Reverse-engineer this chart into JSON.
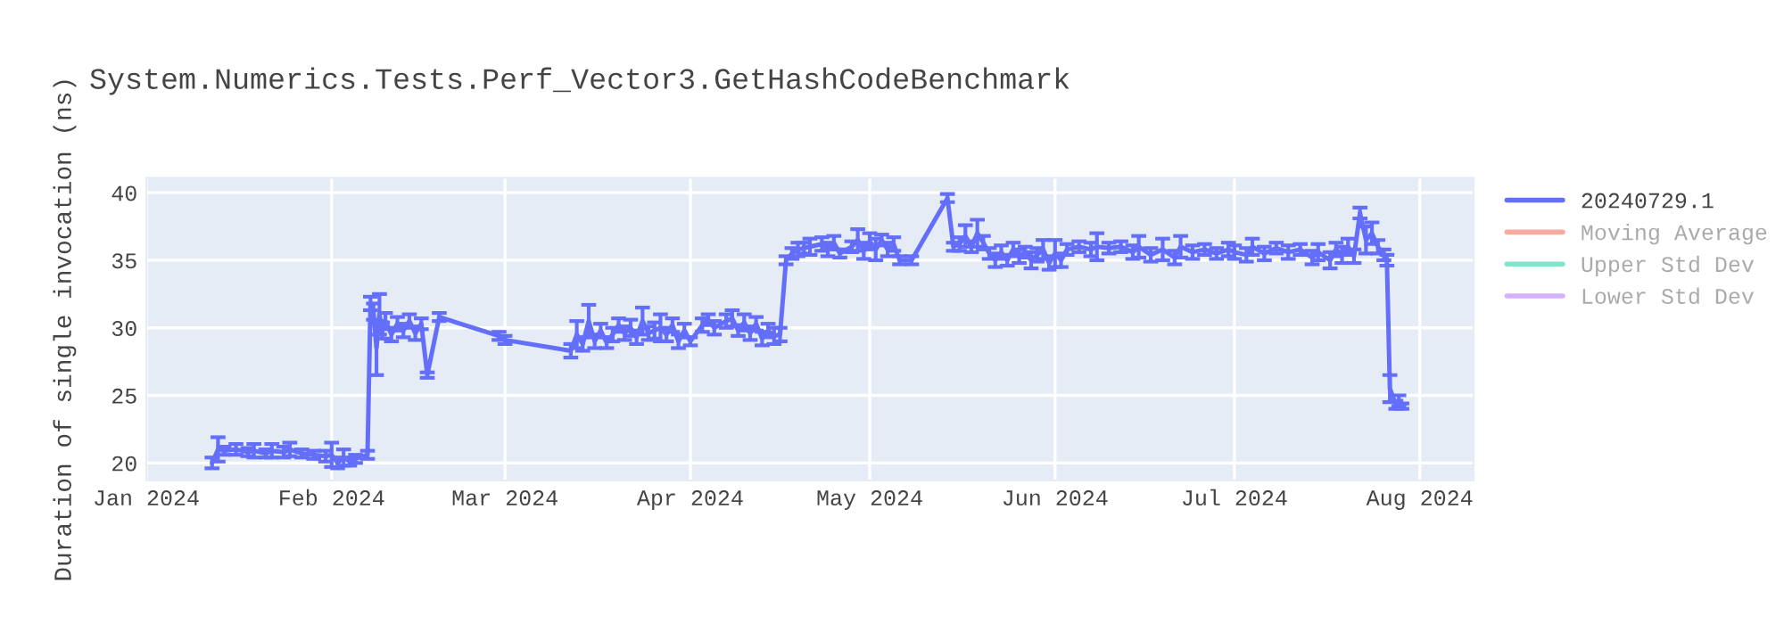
{
  "chart_data": {
    "type": "line",
    "title": "System.Numerics.Tests.Perf_Vector3.GetHashCodeBenchmark",
    "ylabel": "Duration of single invocation (ns)",
    "xlim": [
      "2024-01-01",
      "2024-08-10"
    ],
    "xticks": [
      {
        "value": "2024-01-01",
        "label": "Jan 2024"
      },
      {
        "value": "2024-02-01",
        "label": "Feb 2024"
      },
      {
        "value": "2024-03-01",
        "label": "Mar 2024"
      },
      {
        "value": "2024-04-01",
        "label": "Apr 2024"
      },
      {
        "value": "2024-05-01",
        "label": "May 2024"
      },
      {
        "value": "2024-06-01",
        "label": "Jun 2024"
      },
      {
        "value": "2024-07-01",
        "label": "Jul 2024"
      },
      {
        "value": "2024-08-01",
        "label": "Aug 2024"
      }
    ],
    "ylim": [
      18.7,
      41.1
    ],
    "yticks": [
      20,
      25,
      30,
      35,
      40
    ],
    "grid": true,
    "legend": "top right",
    "marker": "none",
    "line_style": "solid",
    "series": [
      {
        "name": "20240729.1",
        "color": "#636efa",
        "x": [
          "2024-01-12",
          "2024-01-13",
          "2024-01-14",
          "2024-01-16",
          "2024-01-18",
          "2024-01-19",
          "2024-01-21",
          "2024-01-22",
          "2024-01-24",
          "2024-01-25",
          "2024-01-27",
          "2024-01-29",
          "2024-01-31",
          "2024-02-01",
          "2024-02-02",
          "2024-02-03",
          "2024-02-04",
          "2024-02-05",
          "2024-02-07",
          "2024-02-07T12:00",
          "2024-02-08",
          "2024-02-08T12:00",
          "2024-02-09",
          "2024-02-09T12:00",
          "2024-02-10",
          "2024-02-11",
          "2024-02-12",
          "2024-02-13",
          "2024-02-14",
          "2024-02-15",
          "2024-02-16",
          "2024-02-17",
          "2024-02-19",
          "2024-02-29",
          "2024-03-01",
          "2024-03-12",
          "2024-03-13",
          "2024-03-14",
          "2024-03-15",
          "2024-03-16",
          "2024-03-17",
          "2024-03-18",
          "2024-03-19",
          "2024-03-20",
          "2024-03-21",
          "2024-03-22",
          "2024-03-23",
          "2024-03-24",
          "2024-03-25",
          "2024-03-26",
          "2024-03-27",
          "2024-03-28",
          "2024-03-29",
          "2024-03-30",
          "2024-03-31",
          "2024-04-01",
          "2024-04-03",
          "2024-04-04",
          "2024-04-05",
          "2024-04-07",
          "2024-04-08",
          "2024-04-09",
          "2024-04-10",
          "2024-04-11",
          "2024-04-12",
          "2024-04-13",
          "2024-04-14",
          "2024-04-15",
          "2024-04-16",
          "2024-04-17",
          "2024-04-18",
          "2024-04-19",
          "2024-04-20",
          "2024-04-21",
          "2024-04-23",
          "2024-04-24",
          "2024-04-25",
          "2024-04-26",
          "2024-04-28",
          "2024-04-29",
          "2024-04-30",
          "2024-05-01",
          "2024-05-02",
          "2024-05-03",
          "2024-05-04",
          "2024-05-05",
          "2024-05-06",
          "2024-05-08",
          "2024-05-14",
          "2024-05-15",
          "2024-05-16",
          "2024-05-17",
          "2024-05-18",
          "2024-05-19",
          "2024-05-20",
          "2024-05-21",
          "2024-05-22",
          "2024-05-23",
          "2024-05-24",
          "2024-05-25",
          "2024-05-26",
          "2024-05-27",
          "2024-05-28",
          "2024-05-29",
          "2024-05-30",
          "2024-05-31",
          "2024-06-01",
          "2024-06-02",
          "2024-06-03",
          "2024-06-05",
          "2024-06-07",
          "2024-06-08",
          "2024-06-10",
          "2024-06-12",
          "2024-06-14",
          "2024-06-15",
          "2024-06-17",
          "2024-06-19",
          "2024-06-21",
          "2024-06-22",
          "2024-06-24",
          "2024-06-26",
          "2024-06-28",
          "2024-06-30",
          "2024-07-01",
          "2024-07-03",
          "2024-07-04",
          "2024-07-06",
          "2024-07-08",
          "2024-07-10",
          "2024-07-12",
          "2024-07-14",
          "2024-07-15",
          "2024-07-17",
          "2024-07-18",
          "2024-07-19",
          "2024-07-20",
          "2024-07-21",
          "2024-07-22",
          "2024-07-23",
          "2024-07-24",
          "2024-07-25",
          "2024-07-26",
          "2024-07-26T12:00",
          "2024-07-27",
          "2024-07-28",
          "2024-07-28T12:00",
          "2024-07-29"
        ],
        "values": [
          20.0,
          21.0,
          20.9,
          21.0,
          20.8,
          20.9,
          20.7,
          20.9,
          20.8,
          21.0,
          20.7,
          20.6,
          20.5,
          20.6,
          20.0,
          20.4,
          20.1,
          20.3,
          20.6,
          31.8,
          31.2,
          28.5,
          31.0,
          29.8,
          30.5,
          29.5,
          30.3,
          29.8,
          30.5,
          29.6,
          30.3,
          26.5,
          30.8,
          29.4,
          29.1,
          28.3,
          29.5,
          28.8,
          30.5,
          29.0,
          29.8,
          28.9,
          29.5,
          30.2,
          29.6,
          30.0,
          29.3,
          30.5,
          29.6,
          29.8,
          30.0,
          29.5,
          30.2,
          29.0,
          29.8,
          29.0,
          30.2,
          30.6,
          30.0,
          30.5,
          30.7,
          29.8,
          30.4,
          29.6,
          30.3,
          29.2,
          29.8,
          29.4,
          29.5,
          35.0,
          35.5,
          35.8,
          35.9,
          36.0,
          36.2,
          35.8,
          36.3,
          35.5,
          36.0,
          36.5,
          35.7,
          36.4,
          35.8,
          36.5,
          35.8,
          36.2,
          35.0,
          35.0,
          39.6,
          36.0,
          36.2,
          36.8,
          36.0,
          37.0,
          36.3,
          35.5,
          35.0,
          35.6,
          35.0,
          35.8,
          35.3,
          35.6,
          35.0,
          35.4,
          35.8,
          34.8,
          35.5,
          35.0,
          35.8,
          36.0,
          35.8,
          36.0,
          35.9,
          36.0,
          35.6,
          36.0,
          35.4,
          35.8,
          35.2,
          36.0,
          35.6,
          35.8,
          35.5,
          35.8,
          35.6,
          35.4,
          36.0,
          35.5,
          35.9,
          35.6,
          35.8,
          35.2,
          35.6,
          35.0,
          35.8,
          35.4,
          36.0,
          35.3,
          38.5,
          36.5,
          37.0,
          36.0,
          35.4,
          35.0,
          25.5,
          24.3,
          24.6,
          24.2
        ],
        "errors": [
          0.4,
          0.9,
          0.3,
          0.4,
          0.3,
          0.5,
          0.3,
          0.5,
          0.4,
          0.5,
          0.3,
          0.3,
          0.4,
          0.9,
          0.4,
          0.6,
          0.3,
          0.3,
          0.3,
          0.5,
          0.6,
          2.0,
          1.5,
          0.6,
          0.6,
          0.5,
          0.5,
          0.5,
          0.5,
          0.5,
          0.4,
          0.2,
          0.3,
          0.3,
          0.3,
          0.5,
          1.0,
          0.5,
          1.2,
          0.5,
          0.5,
          0.4,
          0.5,
          0.5,
          0.5,
          0.6,
          0.5,
          1.0,
          0.5,
          0.6,
          1.0,
          0.5,
          0.5,
          0.5,
          0.5,
          0.3,
          0.5,
          0.4,
          0.5,
          0.5,
          0.6,
          0.4,
          0.6,
          0.5,
          0.5,
          0.5,
          0.5,
          0.6,
          0.5,
          0.3,
          0.4,
          0.5,
          0.4,
          0.6,
          0.5,
          0.5,
          0.5,
          0.3,
          0.4,
          0.8,
          0.6,
          0.6,
          0.8,
          0.4,
          0.5,
          0.5,
          0.3,
          0.3,
          0.3,
          0.3,
          0.5,
          0.8,
          0.4,
          1.0,
          0.5,
          0.4,
          0.5,
          0.5,
          0.4,
          0.5,
          0.5,
          0.4,
          0.6,
          0.5,
          0.7,
          0.5,
          1.0,
          0.5,
          0.4,
          0.4,
          0.5,
          1.0,
          0.4,
          0.4,
          0.5,
          0.8,
          0.5,
          0.8,
          0.5,
          0.8,
          0.5,
          0.4,
          0.4,
          0.5,
          0.5,
          0.5,
          0.6,
          0.5,
          0.4,
          0.5,
          0.4,
          0.5,
          0.6,
          0.6,
          0.5,
          0.6,
          0.6,
          0.5,
          0.4,
          1.0,
          0.8,
          0.5,
          0.4,
          0.4,
          1.0,
          0.3,
          0.4,
          0.2
        ]
      },
      {
        "name": "Moving Average",
        "color": "#f7aa9d"
      },
      {
        "name": "Upper Std Dev",
        "color": "#80e6cb"
      },
      {
        "name": "Lower Std Dev",
        "color": "#d5b1fd"
      }
    ]
  }
}
